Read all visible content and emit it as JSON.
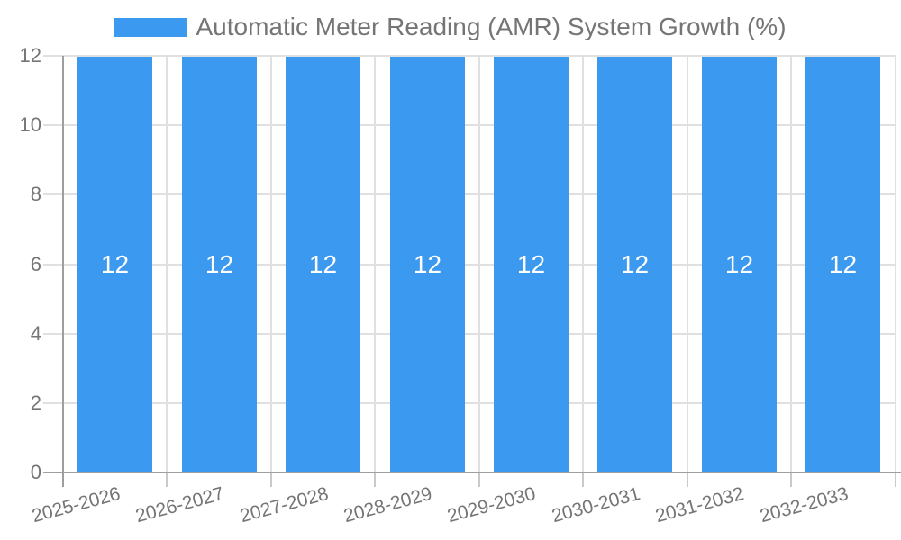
{
  "chart_data": {
    "type": "bar",
    "title": "",
    "categories": [
      "2025-2026",
      "2026-2027",
      "2027-2028",
      "2028-2029",
      "2029-2030",
      "2030-2031",
      "2031-2032",
      "2032-2033"
    ],
    "series": [
      {
        "name": "Automatic Meter Reading (AMR) System Growth (%)",
        "values": [
          12,
          12,
          12,
          12,
          12,
          12,
          12,
          12
        ]
      }
    ],
    "value_labels": [
      "12",
      "12",
      "12",
      "12",
      "12",
      "12",
      "12",
      "12"
    ],
    "xlabel": "",
    "ylabel": "",
    "ylim": [
      0,
      12
    ],
    "yticks": [
      0,
      2,
      4,
      6,
      8,
      10,
      12
    ],
    "grid": "on",
    "legend_position": "top-center",
    "x_label_rotation_deg": -15,
    "colors": {
      "bar": "#3B99F0",
      "grid": "#E0E0E0",
      "tick": "#C9C9C9",
      "axis": "#9E9E9E",
      "label_text": "#757575",
      "value_text": "#FFFFFF",
      "background": "#FFFFFF"
    }
  }
}
